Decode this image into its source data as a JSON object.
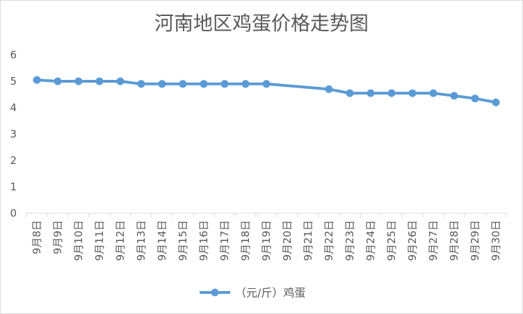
{
  "chart_data": {
    "type": "line",
    "title": "河南地区鸡蛋价格走势图",
    "xlabel": "",
    "ylabel": "",
    "ylim": [
      0,
      6
    ],
    "yticks": [
      "0",
      "1",
      "2",
      "3",
      "4",
      "5",
      "6"
    ],
    "grid": false,
    "legend": "bottom",
    "categories": [
      "9月8日",
      "9月9日",
      "9月10日",
      "9月11日",
      "9月12日",
      "9月13日",
      "9月14日",
      "9月15日",
      "9月16日",
      "9月17日",
      "9月18日",
      "9月19日",
      "9月20日",
      "9月21日",
      "9月22日",
      "9月23日",
      "9月24日",
      "9月25日",
      "9月26日",
      "9月27日",
      "9月28日",
      "9月29日",
      "9月30日"
    ],
    "series": [
      {
        "name": "（元/斤）鸡蛋",
        "color": "#5b9bd5",
        "values": [
          5.05,
          5.0,
          5.0,
          5.0,
          5.0,
          4.9,
          4.9,
          4.9,
          4.9,
          4.9,
          4.9,
          4.9,
          null,
          null,
          4.7,
          4.55,
          4.55,
          4.55,
          4.55,
          4.55,
          4.45,
          4.35,
          4.2
        ]
      }
    ]
  }
}
